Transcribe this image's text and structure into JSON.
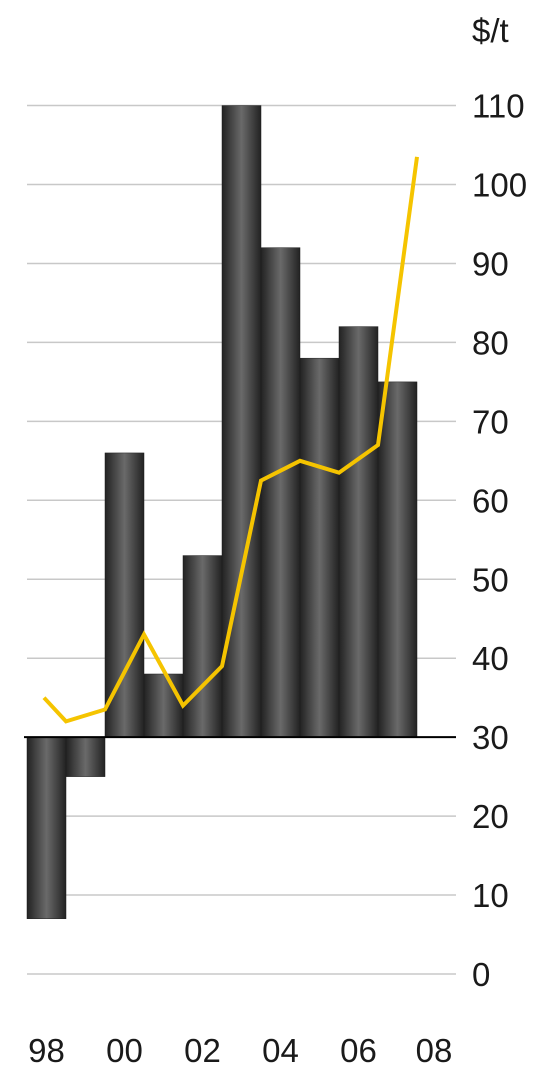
{
  "chart_data": {
    "type": "bar",
    "unit_label": "$/t",
    "x_tick_labels": [
      "98",
      "00",
      "02",
      "04",
      "06",
      "08"
    ],
    "x_tick_years": [
      1998,
      2000,
      2002,
      2004,
      2006,
      2008
    ],
    "y_tick_labels": [
      "0",
      "10",
      "20",
      "30",
      "40",
      "50",
      "60",
      "70",
      "80",
      "90",
      "100",
      "110"
    ],
    "y_ticks": [
      0,
      10,
      20,
      30,
      40,
      50,
      60,
      70,
      80,
      90,
      100,
      110
    ],
    "ylim": [
      0,
      110
    ],
    "xlim": [
      1997.5,
      2008.5
    ],
    "bar_baseline": 30,
    "grid": true,
    "axis_side": "right",
    "series": [
      {
        "type": "bar",
        "x": [
          1998,
          1999,
          2000,
          2001,
          2002,
          2003,
          2004,
          2005,
          2006,
          2007
        ],
        "values": [
          7,
          25,
          66,
          38,
          53,
          110,
          92,
          78,
          82,
          75
        ]
      },
      {
        "type": "line",
        "x": [
          1997.5,
          1998.5,
          1999.5,
          2000.5,
          2001.5,
          2002.5,
          2003.5,
          2004.5,
          2005.5,
          2006.5,
          2007.5
        ],
        "values": [
          35,
          32,
          33.5,
          43,
          34,
          39,
          62.5,
          65,
          63.5,
          67,
          103.5
        ]
      }
    ],
    "colors": {
      "bar": "#4a4a4a",
      "bar_edge": "#1f1f1f",
      "line": "#f5c400",
      "grid": "#c8c8c8",
      "baseline": "#000000"
    }
  }
}
